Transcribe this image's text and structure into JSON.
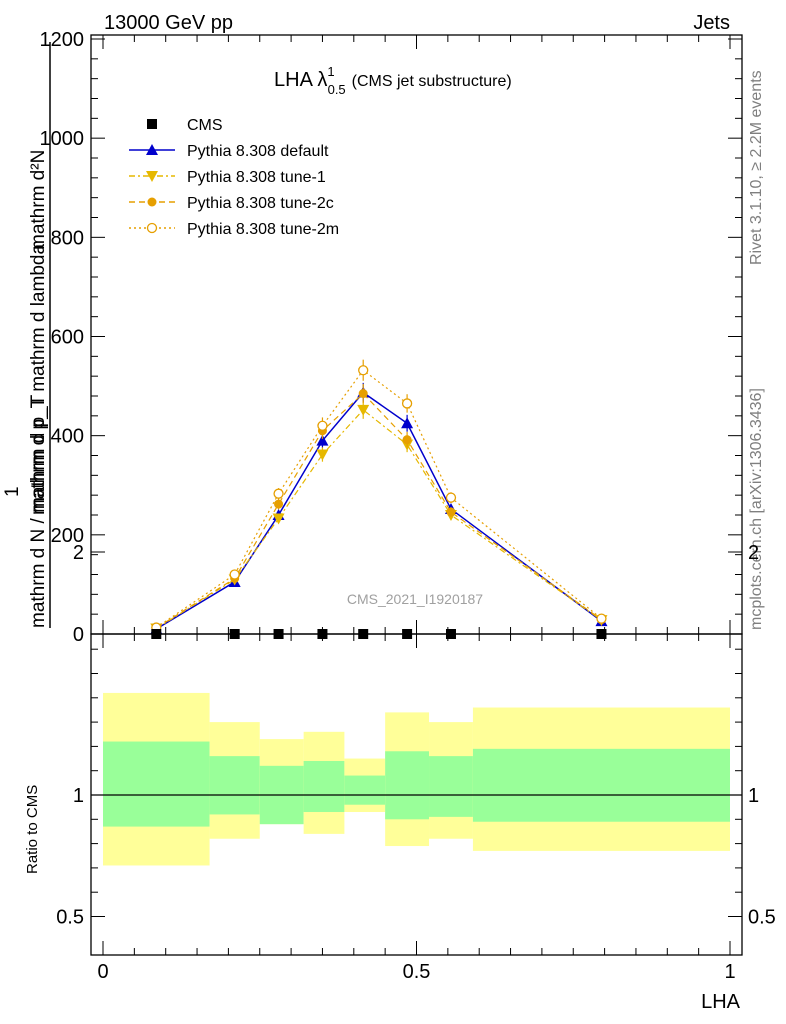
{
  "header": {
    "left": "13000 GeV pp",
    "right": "Jets"
  },
  "side_labels": {
    "rivet": "Rivet 3.1.10, ≥ 2.2M events",
    "mcplots": "mcplots.cern.ch [arXiv:1306.3436]"
  },
  "watermark": "CMS_2021_I1920187",
  "chart_data": [
    {
      "type": "line",
      "title_main": "LHA λ",
      "title_sup": "1",
      "title_sub": "0.5",
      "title_tail": "(CMS jet substructure)",
      "ylabel_numerator": "mathrm d²N",
      "ylabel_numerator2": "mathrm d p_T mathrm d lambda",
      "ylabel_denominator": "mathrm d N / mathrm d p_T",
      "ylabel_prefix": "1",
      "ylim": [
        0,
        1200
      ],
      "yticks": [
        0,
        200,
        400,
        600,
        800,
        1000,
        1200
      ],
      "ytick_labels": [
        "0",
        "200",
        "400",
        "600",
        "800",
        "1000",
        "1200"
      ],
      "xlim": [
        0,
        1
      ],
      "grid": false,
      "legend_position": "top-left",
      "series": [
        {
          "name": "CMS",
          "color": "#000000",
          "marker": "square",
          "x": [
            0.085,
            0.21,
            0.28,
            0.35,
            0.415,
            0.485,
            0.555,
            0.795
          ],
          "y": [
            0,
            0,
            0,
            0,
            0,
            0,
            0,
            0
          ]
        },
        {
          "name": "Pythia 8.308 default",
          "color": "#0000cc",
          "marker": "triangle-up",
          "line": "solid",
          "x": [
            0.085,
            0.21,
            0.28,
            0.35,
            0.415,
            0.485,
            0.555,
            0.795
          ],
          "y": [
            10,
            105,
            240,
            390,
            487,
            425,
            252,
            26
          ]
        },
        {
          "name": "Pythia 8.308 tune-1",
          "color": "#e6b800",
          "marker": "triangle-down",
          "line": "dashdot",
          "x": [
            0.085,
            0.21,
            0.28,
            0.35,
            0.415,
            0.485,
            0.555,
            0.795
          ],
          "y": [
            11,
            110,
            233,
            362,
            452,
            382,
            240,
            28
          ]
        },
        {
          "name": "Pythia 8.308 tune-2c",
          "color": "#e69f00",
          "marker": "circle",
          "line": "dashed",
          "x": [
            0.085,
            0.21,
            0.28,
            0.35,
            0.415,
            0.485,
            0.555,
            0.795
          ],
          "y": [
            12,
            112,
            262,
            410,
            485,
            392,
            246,
            29
          ]
        },
        {
          "name": "Pythia 8.308 tune-2m",
          "color": "#e69f00",
          "marker": "open-circle",
          "line": "dotted",
          "x": [
            0.085,
            0.21,
            0.28,
            0.35,
            0.415,
            0.485,
            0.555,
            0.795
          ],
          "y": [
            13,
            120,
            283,
            420,
            532,
            465,
            275,
            31
          ]
        }
      ]
    },
    {
      "type": "area",
      "ylabel": "Ratio to CMS",
      "xlabel": "LHA",
      "xlim": [
        0,
        1
      ],
      "ylim": [
        0.4,
        2.3
      ],
      "yticks": [
        0.5,
        1,
        2
      ],
      "ytick_labels": [
        "0.5",
        "1",
        "2"
      ],
      "xticks": [
        0,
        0.5,
        1
      ],
      "xtick_labels": [
        "0",
        "0.5",
        "1"
      ],
      "reference_line": 1,
      "bins": [
        0,
        0.17,
        0.25,
        0.32,
        0.385,
        0.45,
        0.52,
        0.59,
        1
      ],
      "band_inner": {
        "color": "#99ff99",
        "upper": [
          1.22,
          1.16,
          1.12,
          1.14,
          1.08,
          1.18,
          1.16,
          1.19
        ],
        "lower": [
          0.87,
          0.92,
          0.88,
          0.93,
          0.96,
          0.9,
          0.91,
          0.89
        ]
      },
      "band_outer": {
        "color": "#ffff99",
        "upper": [
          1.42,
          1.3,
          1.23,
          1.26,
          1.15,
          1.34,
          1.3,
          1.36
        ],
        "lower": [
          0.71,
          0.82,
          0.88,
          0.84,
          0.93,
          0.79,
          0.82,
          0.77
        ]
      }
    }
  ]
}
